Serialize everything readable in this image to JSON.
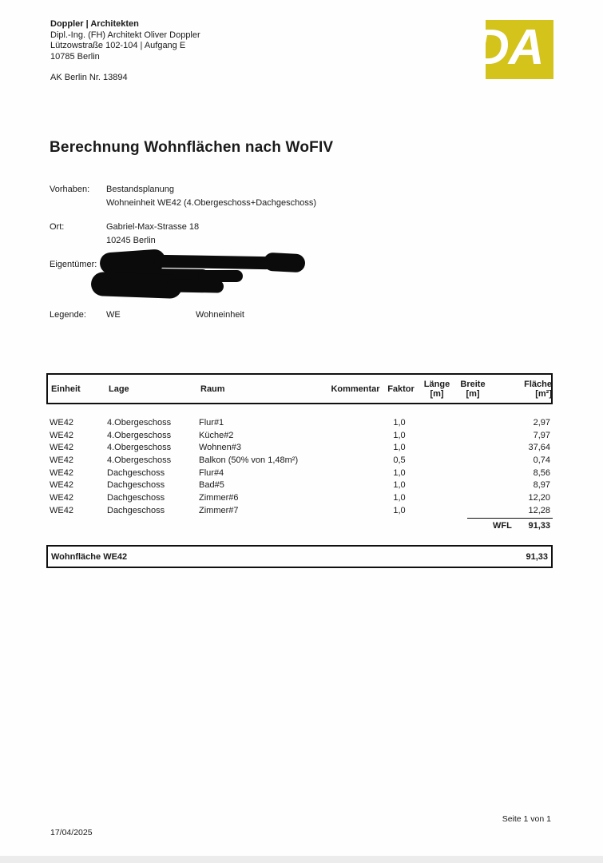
{
  "letterhead": {
    "firm": "Doppler | Architekten",
    "person": "Dipl.-Ing. (FH) Architekt Oliver Doppler",
    "street": "Lützowstraße 102-104 | Aufgang E",
    "city": "10785 Berlin",
    "registration": "AK Berlin Nr. 13894",
    "logo_text": "DA",
    "logo_color": "#d4c31b"
  },
  "title": "Berechnung Wohnflächen nach WoFIV",
  "meta": {
    "vorhaben_label": "Vorhaben:",
    "vorhaben_line1": "Bestandsplanung",
    "vorhaben_line2": "Wohneinheit WE42 (4.Obergeschoss+Dachgeschoss)",
    "ort_label": "Ort:",
    "ort_line1": "Gabriel-Max-Strasse 18",
    "ort_line2": "10245 Berlin",
    "eigentuemer_label": "Eigentümer:",
    "legende_label": "Legende:",
    "legende_key": "WE",
    "legende_value": "Wohneinheit"
  },
  "table": {
    "headers": {
      "einheit": "Einheit",
      "lage": "Lage",
      "raum": "Raum",
      "kommentar": "Kommentar",
      "faktor": "Faktor",
      "laenge_l1": "Länge",
      "laenge_l2": "[m]",
      "breite_l1": "Breite",
      "breite_l2": "[m]",
      "flaeche_l1": "Fläche",
      "flaeche_l2": "[m²]"
    },
    "rows": [
      {
        "einheit": "WE42",
        "lage": "4.Obergeschoss",
        "raum": "Flur#1",
        "kommentar": "",
        "faktor": "1,0",
        "laenge": "",
        "breite": "",
        "flaeche": "2,97"
      },
      {
        "einheit": "WE42",
        "lage": "4.Obergeschoss",
        "raum": "Küche#2",
        "kommentar": "",
        "faktor": "1,0",
        "laenge": "",
        "breite": "",
        "flaeche": "7,97"
      },
      {
        "einheit": "WE42",
        "lage": "4.Obergeschoss",
        "raum": "Wohnen#3",
        "kommentar": "",
        "faktor": "1,0",
        "laenge": "",
        "breite": "",
        "flaeche": "37,64"
      },
      {
        "einheit": "WE42",
        "lage": "4.Obergeschoss",
        "raum": "Balkon (50% von 1,48m²)",
        "kommentar": "",
        "faktor": "0,5",
        "laenge": "",
        "breite": "",
        "flaeche": "0,74"
      },
      {
        "einheit": "WE42",
        "lage": "Dachgeschoss",
        "raum": "Flur#4",
        "kommentar": "",
        "faktor": "1,0",
        "laenge": "",
        "breite": "",
        "flaeche": "8,56"
      },
      {
        "einheit": "WE42",
        "lage": "Dachgeschoss",
        "raum": "Bad#5",
        "kommentar": "",
        "faktor": "1,0",
        "laenge": "",
        "breite": "",
        "flaeche": "8,97"
      },
      {
        "einheit": "WE42",
        "lage": "Dachgeschoss",
        "raum": "Zimmer#6",
        "kommentar": "",
        "faktor": "1,0",
        "laenge": "",
        "breite": "",
        "flaeche": "12,20"
      },
      {
        "einheit": "WE42",
        "lage": "Dachgeschoss",
        "raum": "Zimmer#7",
        "kommentar": "",
        "faktor": "1,0",
        "laenge": "",
        "breite": "",
        "flaeche": "12,28"
      }
    ],
    "total_label": "WFL",
    "total_value": "91,33"
  },
  "summary": {
    "label": "Wohnfläche WE42",
    "value": "91,33"
  },
  "footer": {
    "date": "17/04/2025",
    "page": "Seite 1 von 1"
  }
}
